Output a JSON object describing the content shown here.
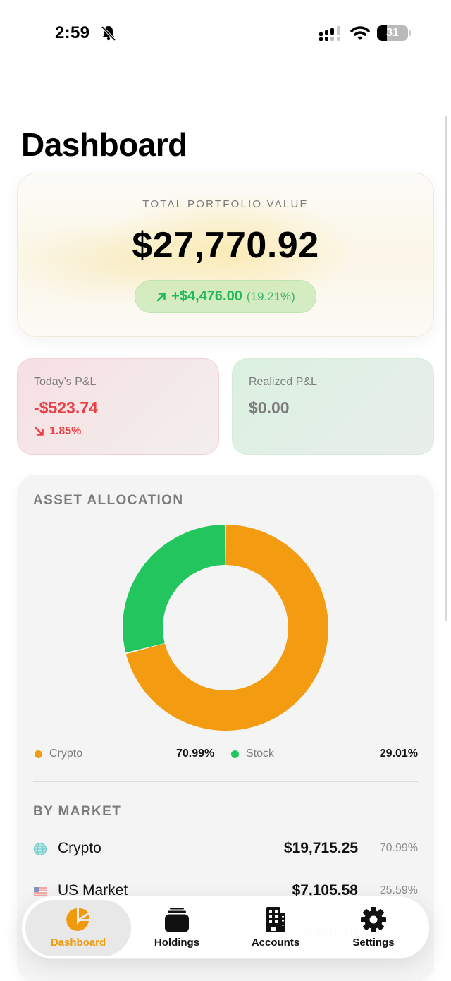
{
  "status_bar": {
    "time": "2:59",
    "battery_level": "31",
    "icons": [
      "bell-slash-icon",
      "signal-icon",
      "wifi-icon",
      "battery-icon"
    ]
  },
  "page": {
    "title": "Dashboard"
  },
  "portfolio": {
    "label": "TOTAL PORTFOLIO VALUE",
    "value": "$27,770.92",
    "change_amount": "+$4,476.00",
    "change_percent": "(19.21%)",
    "change_icon": "arrow-up-right-icon",
    "positive_color": "#22b95a"
  },
  "pnl": {
    "today": {
      "label": "Today's P&L",
      "value": "-$523.74",
      "change": "1.85%",
      "change_icon": "arrow-down-right-icon",
      "color": "#ec3e45"
    },
    "realized": {
      "label": "Realized P&L",
      "value": "$0.00"
    }
  },
  "allocation": {
    "title": "ASSET ALLOCATION",
    "legend": [
      {
        "name": "Crypto",
        "value": "70.99%",
        "color": "#f39c12"
      },
      {
        "name": "Stock",
        "value": "29.01%",
        "color": "#22c55e"
      }
    ]
  },
  "by_market": {
    "title": "BY MARKET",
    "rows": [
      {
        "icon": "globe-icon",
        "name": "Crypto",
        "value": "$19,715.25",
        "percent": "70.99%"
      },
      {
        "icon": "us-flag-icon",
        "name": "US Market",
        "value": "$7,105.58",
        "percent": "25.59%"
      },
      {
        "icon": "flag-icon",
        "name": "",
        "value": "$950.10",
        "percent": "3.42%"
      }
    ]
  },
  "tab_bar": {
    "active_color": "#ee9a0c",
    "tabs": [
      {
        "label": "Dashboard",
        "icon": "pie-chart-icon",
        "active": true
      },
      {
        "label": "Holdings",
        "icon": "stack-icon",
        "active": false
      },
      {
        "label": "Accounts",
        "icon": "building-icon",
        "active": false
      },
      {
        "label": "Settings",
        "icon": "gear-icon",
        "active": false
      }
    ]
  },
  "chart_data": {
    "type": "pie",
    "title": "ASSET ALLOCATION",
    "donut": true,
    "categories": [
      "Crypto",
      "Stock"
    ],
    "values": [
      70.99,
      29.01
    ],
    "colors": [
      "#f39c12",
      "#22c55e"
    ],
    "legend_position": "bottom"
  }
}
